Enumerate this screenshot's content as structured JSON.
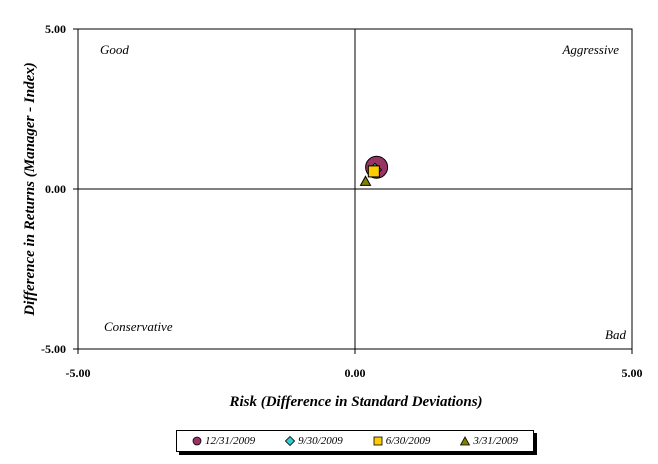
{
  "chart_data": {
    "type": "scatter",
    "title": "",
    "xlabel": "Risk (Difference in Standard Deviations)",
    "ylabel": "Difference in Returns (Manager - Index)",
    "xlim": [
      -5.0,
      5.0
    ],
    "ylim": [
      -5.0,
      5.0
    ],
    "x_ticks": [
      "-5.00",
      "0.00",
      "5.00"
    ],
    "y_ticks": [
      "-5.00",
      "0.00",
      "5.00"
    ],
    "grid": false,
    "legend_position": "bottom",
    "quadrant_labels": {
      "top_left": "Good",
      "top_right": "Aggressive",
      "bottom_left": "Conservative",
      "bottom_right": "Bad"
    },
    "series": [
      {
        "name": "12/31/2009",
        "marker": "circle",
        "color": "#993366",
        "x": 0.39,
        "y": 0.68
      },
      {
        "name": "9/30/2009",
        "marker": "diamond",
        "color": "#33CCCC",
        "x": 0.36,
        "y": 0.6
      },
      {
        "name": "6/30/2009",
        "marker": "square",
        "color": "#FFCC00",
        "x": 0.34,
        "y": 0.55
      },
      {
        "name": "3/31/2009",
        "marker": "triangle",
        "color": "#808000",
        "x": 0.19,
        "y": 0.24
      }
    ]
  }
}
